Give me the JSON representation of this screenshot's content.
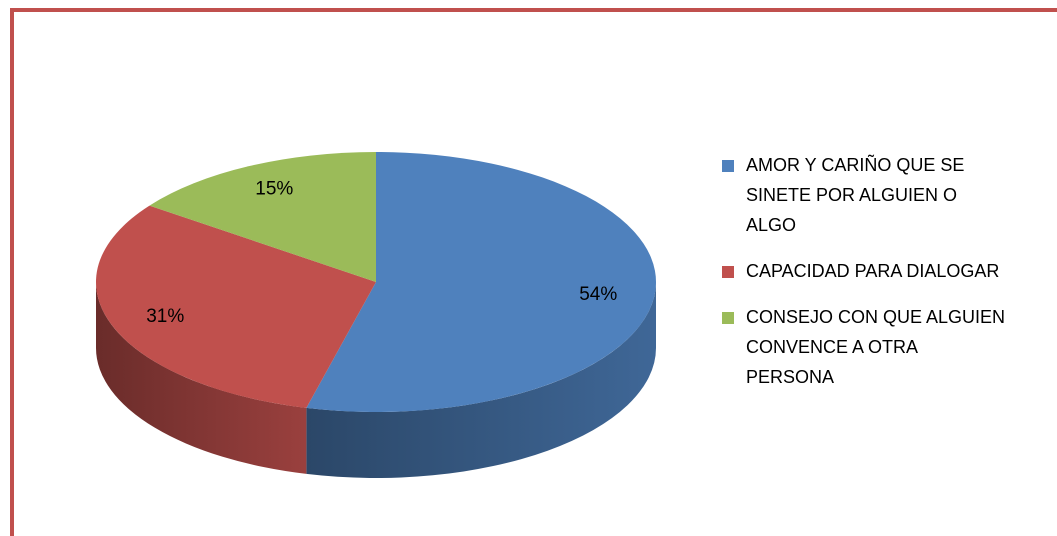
{
  "chart_data": {
    "type": "pie",
    "categories": [
      "AMOR Y CARIÑO QUE SE SINETE POR ALGUIEN O ALGO",
      "CAPACIDAD PARA DIALOGAR",
      "CONSEJO CON QUE ALGUIEN CONVENCE A OTRA PERSONA"
    ],
    "values": [
      54,
      31,
      15
    ],
    "value_labels": [
      "54%",
      "31%",
      "15%"
    ],
    "colors": [
      "#4f81bd",
      "#c0504d",
      "#9bbb59"
    ],
    "legend": "right"
  }
}
